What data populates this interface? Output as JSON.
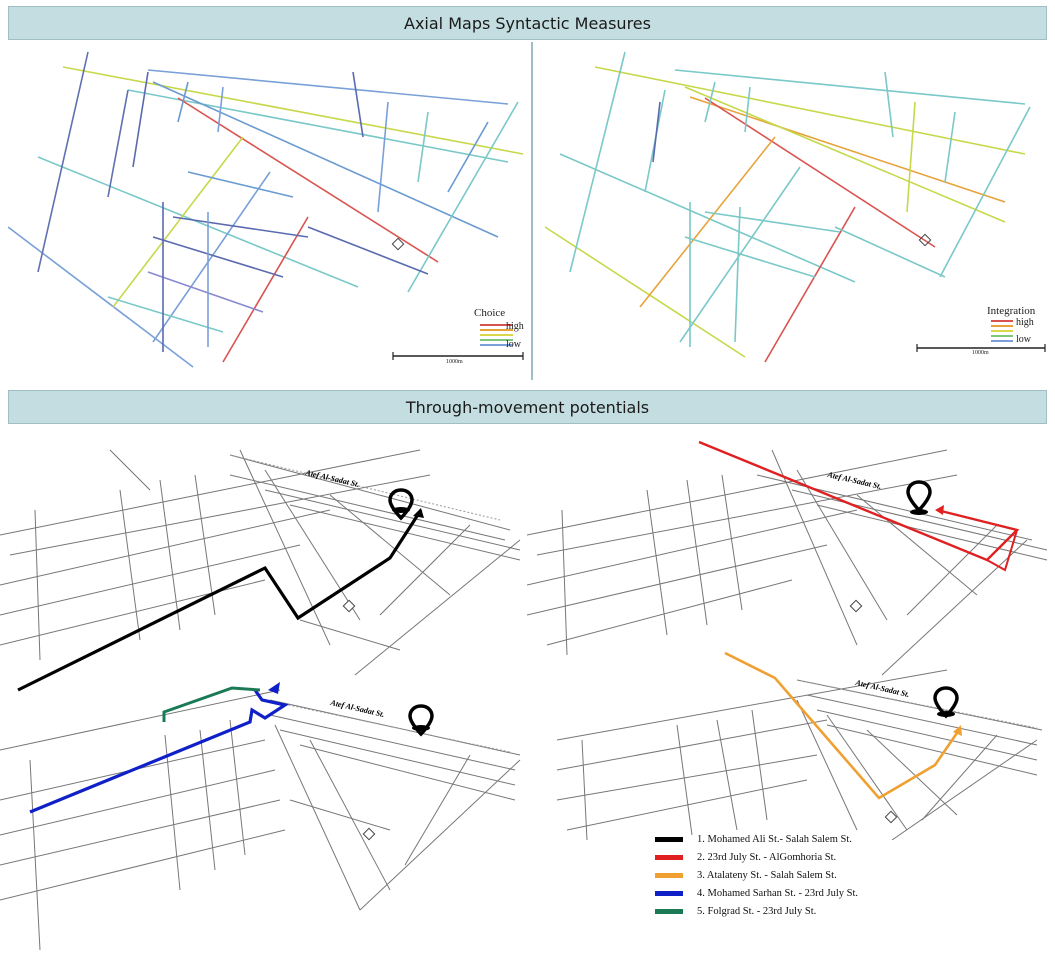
{
  "header_top": "Axial Maps Syntactic Measures",
  "header_bottom": "Through-movement potentials",
  "choice_map": {
    "legend_title": "Choice",
    "legend_high": "high",
    "legend_low": "low",
    "scale_label": "1000m"
  },
  "integration_map": {
    "legend_title": "Integration",
    "legend_high": "high",
    "legend_low": "low",
    "scale_label": "1000m"
  },
  "street_label": "Atef Al-Sadat St.",
  "legend_colors": [
    "#d9534f",
    "#e8a23a",
    "#d8d84a",
    "#7cc77c",
    "#7aa0d8"
  ],
  "routes": [
    {
      "label": "1. Mohamed Ali St.- Salah Salem St.",
      "color": "#000000"
    },
    {
      "label": "2. 23rd July St. - AlGomhoria St.",
      "color": "#e02020"
    },
    {
      "label": "3.  Atalateny St. - Salah Salem St.",
      "color": "#f0a030"
    },
    {
      "label": "4. Mohamed Sarhan St. - 23rd July St.",
      "color": "#1020c8"
    },
    {
      "label": "5. Folgrad St. - 23rd July St.",
      "color": "#1a7a55"
    }
  ]
}
